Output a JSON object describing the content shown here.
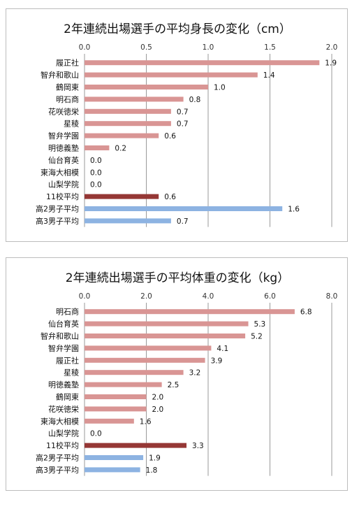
{
  "chart_data": [
    {
      "type": "bar",
      "orientation": "horizontal",
      "title": "2年連続出場選手の平均身長の変化（cm）",
      "xlim": [
        0,
        2.0
      ],
      "ticks": [
        "0.0",
        "0.5",
        "1.0",
        "1.5",
        "2.0"
      ],
      "tick_values": [
        0,
        0.5,
        1.0,
        1.5,
        2.0
      ],
      "grid": true,
      "axis_position": "top",
      "categories": [
        "履正社",
        "智弁和歌山",
        "鶴岡東",
        "明石商",
        "花咲徳栄",
        "星稜",
        "智弁学園",
        "明徳義塾",
        "仙台育英",
        "東海大相模",
        "山梨学院",
        "11校平均",
        "高2男子平均",
        "高3男子平均"
      ],
      "values": [
        1.9,
        1.4,
        1.0,
        0.8,
        0.7,
        0.7,
        0.6,
        0.2,
        0.0,
        0.0,
        0.0,
        0.6,
        1.6,
        0.7
      ],
      "labels": [
        "1.9",
        "1.4",
        "1.0",
        "0.8",
        "0.7",
        "0.7",
        "0.6",
        "0.2",
        "0.0",
        "0.0",
        "0.0",
        "0.6",
        "1.6",
        "0.7"
      ],
      "colors": [
        "#d99594",
        "#d99594",
        "#d99594",
        "#d99594",
        "#d99594",
        "#d99594",
        "#d99594",
        "#d99594",
        "#d99594",
        "#d99594",
        "#d99594",
        "#953735",
        "#8db3e2",
        "#8db3e2"
      ]
    },
    {
      "type": "bar",
      "orientation": "horizontal",
      "title": "2年連続出場選手の平均体重の変化（kg）",
      "xlim": [
        0,
        8.0
      ],
      "ticks": [
        "0.0",
        "2.0",
        "4.0",
        "6.0",
        "8.0"
      ],
      "tick_values": [
        0,
        2.0,
        4.0,
        6.0,
        8.0
      ],
      "grid": true,
      "axis_position": "top",
      "categories": [
        "明石商",
        "仙台育英",
        "智弁和歌山",
        "智弁学園",
        "履正社",
        "星稜",
        "明徳義塾",
        "鶴岡東",
        "花咲徳栄",
        "東海大相模",
        "山梨学院",
        "11校平均",
        "高2男子平均",
        "高3男子平均"
      ],
      "values": [
        6.8,
        5.3,
        5.2,
        4.1,
        3.9,
        3.2,
        2.5,
        2.0,
        2.0,
        1.6,
        0.0,
        3.3,
        1.9,
        1.8
      ],
      "labels": [
        "6.8",
        "5.3",
        "5.2",
        "4.1",
        "3.9",
        "3.2",
        "2.5",
        "2.0",
        "2.0",
        "1.6",
        "0.0",
        "3.3",
        "1.9",
        "1.8"
      ],
      "colors": [
        "#d99594",
        "#d99594",
        "#d99594",
        "#d99594",
        "#d99594",
        "#d99594",
        "#d99594",
        "#d99594",
        "#d99594",
        "#d99594",
        "#d99594",
        "#953735",
        "#8db3e2",
        "#8db3e2"
      ]
    }
  ]
}
